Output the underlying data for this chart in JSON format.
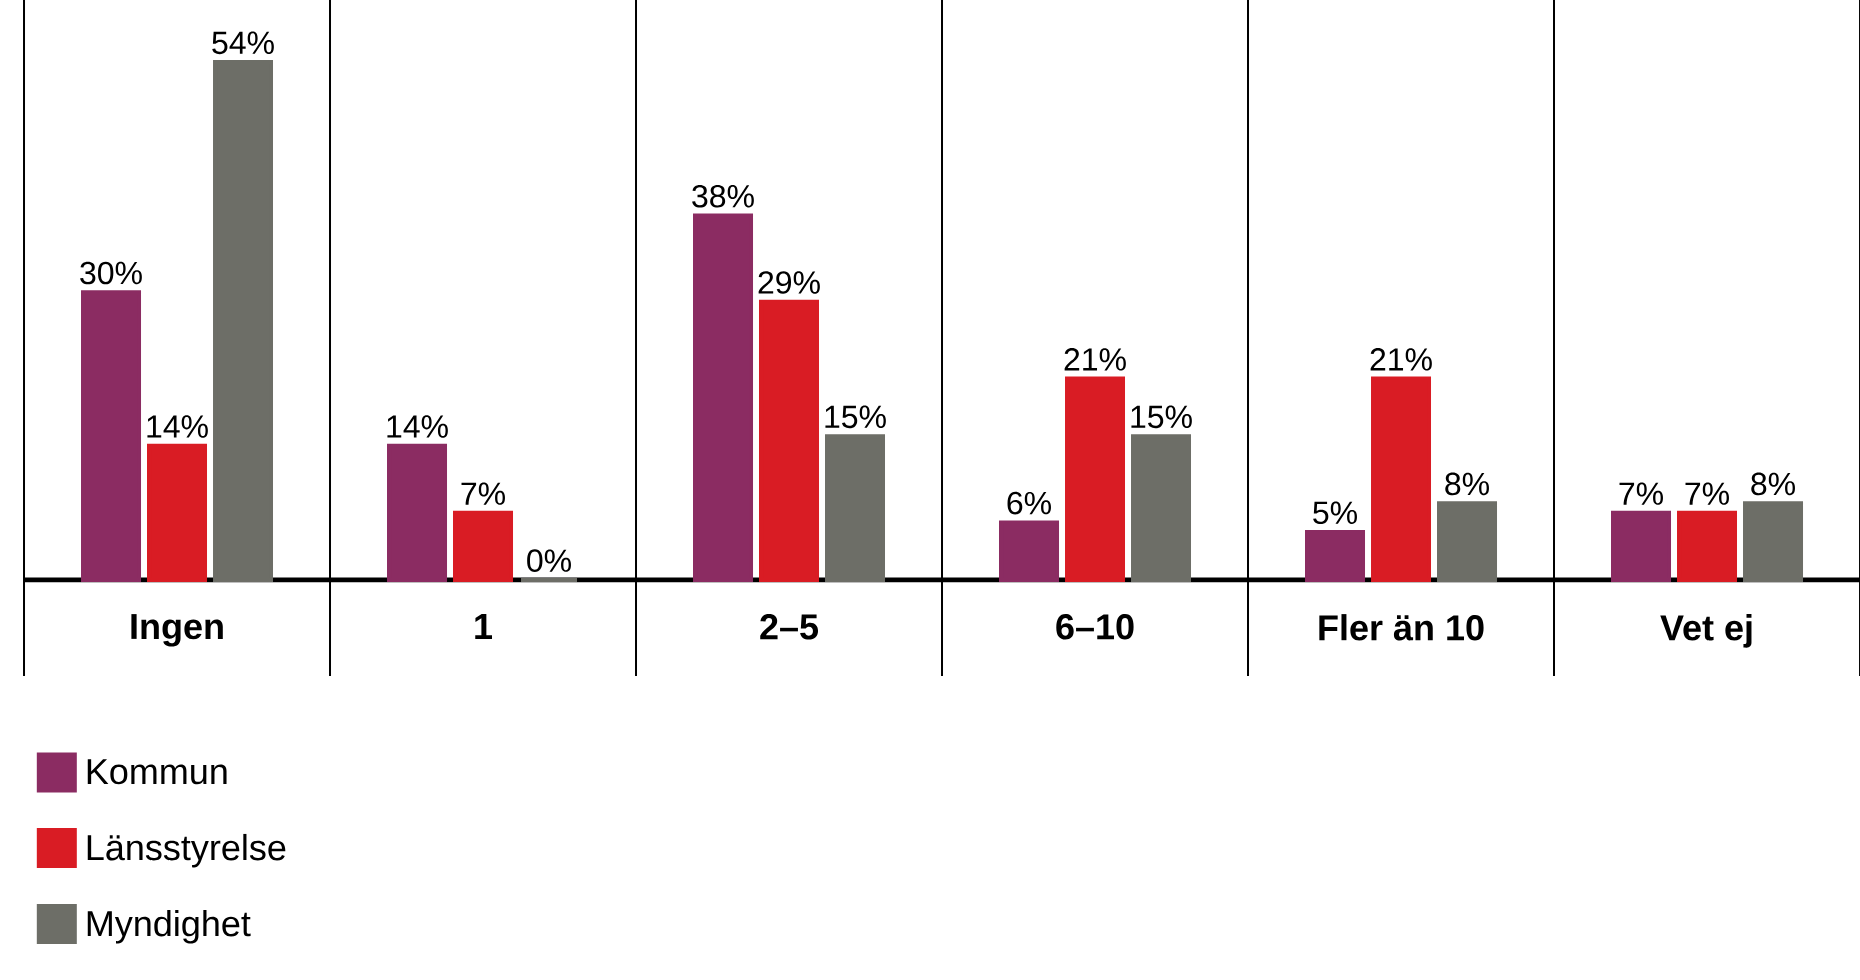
{
  "chart_data": {
    "type": "bar",
    "categories": [
      "Ingen",
      "1",
      "2–5",
      "6–10",
      "Fler än 10",
      "Vet ej"
    ],
    "series": [
      {
        "name": "Kommun",
        "color": "#8b2c62",
        "values": [
          30,
          14,
          38,
          6,
          5,
          7
        ],
        "value_labels": [
          "30%",
          "14%",
          "38%",
          "6%",
          "5%",
          "7%"
        ]
      },
      {
        "name": "Länsstyrelse",
        "color": "#d91c24",
        "values": [
          14,
          7,
          29,
          21,
          21,
          7
        ],
        "value_labels": [
          "14%",
          "7%",
          "29%",
          "21%",
          "21%",
          "7%"
        ]
      },
      {
        "name": "Myndighet",
        "color": "#6d6e67",
        "values": [
          54,
          0,
          15,
          15,
          8,
          8
        ],
        "value_labels": [
          "54%",
          "0%",
          "15%",
          "15%",
          "8%",
          "8%"
        ]
      }
    ],
    "legend": "bottom"
  }
}
